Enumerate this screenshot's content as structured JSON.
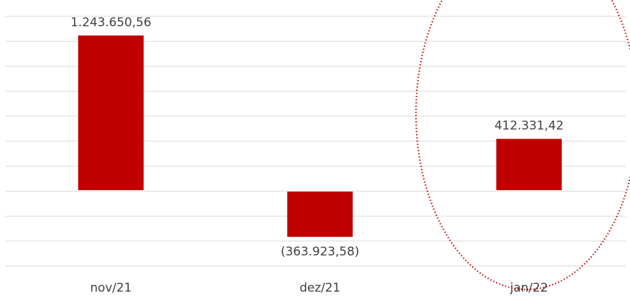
{
  "chart_data": {
    "type": "bar",
    "categories": [
      "nov/21",
      "dez/21",
      "jan/22"
    ],
    "values": [
      1243650.56,
      -363923.58,
      412331.42
    ],
    "data_labels": [
      "1.243.650,56",
      "(363.923,58)",
      "412.331,42"
    ],
    "bar_color": "#c00000",
    "grid": true,
    "legend": "none",
    "highlight": "jan/22",
    "highlight_color": "#c00000"
  }
}
